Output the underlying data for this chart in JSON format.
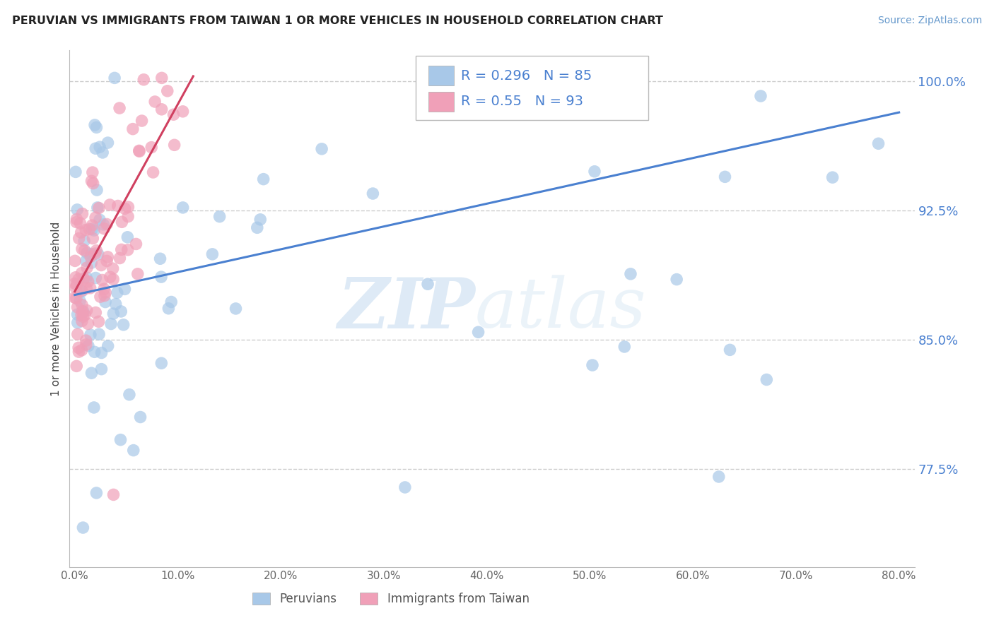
{
  "title": "PERUVIAN VS IMMIGRANTS FROM TAIWAN 1 OR MORE VEHICLES IN HOUSEHOLD CORRELATION CHART",
  "source": "Source: ZipAtlas.com",
  "ylabel": "1 or more Vehicles in Household",
  "legend_label1": "Peruvians",
  "legend_label2": "Immigrants from Taiwan",
  "R1": 0.296,
  "N1": 85,
  "R2": 0.55,
  "N2": 93,
  "xmin": -0.005,
  "xmax": 0.815,
  "ymin": 0.718,
  "ymax": 1.018,
  "yticks": [
    0.775,
    0.85,
    0.925,
    1.0
  ],
  "ytick_labels": [
    "77.5%",
    "85.0%",
    "92.5%",
    "100.0%"
  ],
  "xticks": [
    0.0,
    0.1,
    0.2,
    0.3,
    0.4,
    0.5,
    0.6,
    0.7,
    0.8
  ],
  "xtick_labels": [
    "0.0%",
    "10.0%",
    "20.0%",
    "30.0%",
    "40.0%",
    "50.0%",
    "60.0%",
    "70.0%",
    "80.0%"
  ],
  "color_blue": "#a8c8e8",
  "color_pink": "#f0a0b8",
  "line_blue": "#4a80d0",
  "line_pink": "#d04060",
  "watermark_zip": "ZIP",
  "watermark_atlas": "atlas",
  "blue_trend_x0": 0.0,
  "blue_trend_y0": 0.876,
  "blue_trend_x1": 0.8,
  "blue_trend_y1": 0.982,
  "pink_trend_x0": 0.0,
  "pink_trend_y0": 0.878,
  "pink_trend_x1": 0.115,
  "pink_trend_y1": 1.003
}
